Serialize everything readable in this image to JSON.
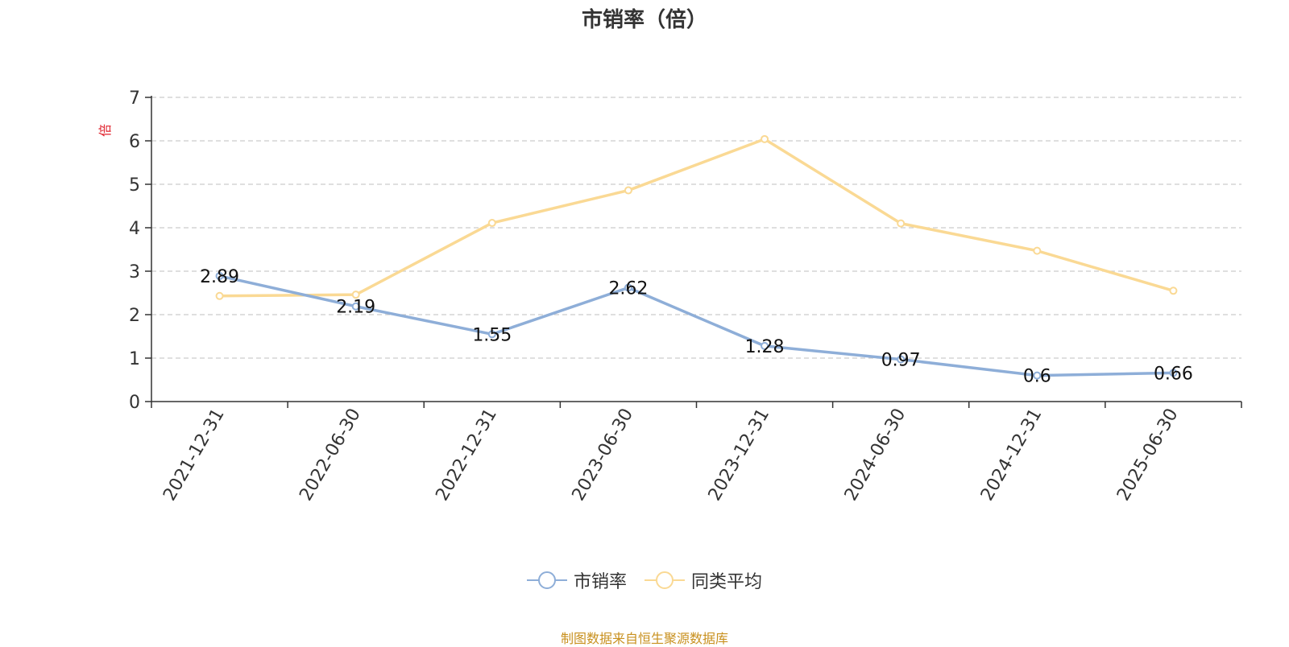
{
  "chart_data": {
    "type": "line",
    "title": "市销率（倍）",
    "ylabel": "倍",
    "categories": [
      "2021-12-31",
      "2022-06-30",
      "2022-12-31",
      "2023-06-30",
      "2023-12-31",
      "2024-06-30",
      "2024-12-31",
      "2025-06-30"
    ],
    "ylim": [
      0,
      7
    ],
    "yticks": [
      "0",
      "1",
      "2",
      "3",
      "4",
      "5",
      "6",
      "7"
    ],
    "grid": true,
    "legend_position": "bottom",
    "series": [
      {
        "name": "市销率",
        "color": "#8eaed8",
        "values": [
          2.89,
          2.19,
          1.55,
          2.62,
          1.28,
          0.97,
          0.6,
          0.66
        ],
        "labels": [
          "2.89",
          "2.19",
          "1.55",
          "2.62",
          "1.28",
          "0.97",
          "0.6",
          "0.66"
        ]
      },
      {
        "name": "同类平均",
        "color": "#fad994",
        "values": [
          2.43,
          2.46,
          4.11,
          4.86,
          6.04,
          4.1,
          3.47,
          2.55
        ]
      }
    ],
    "source": "制图数据来自恒生聚源数据库",
    "source_color": "#c8901e",
    "ylabel_color": "#e0232e"
  }
}
